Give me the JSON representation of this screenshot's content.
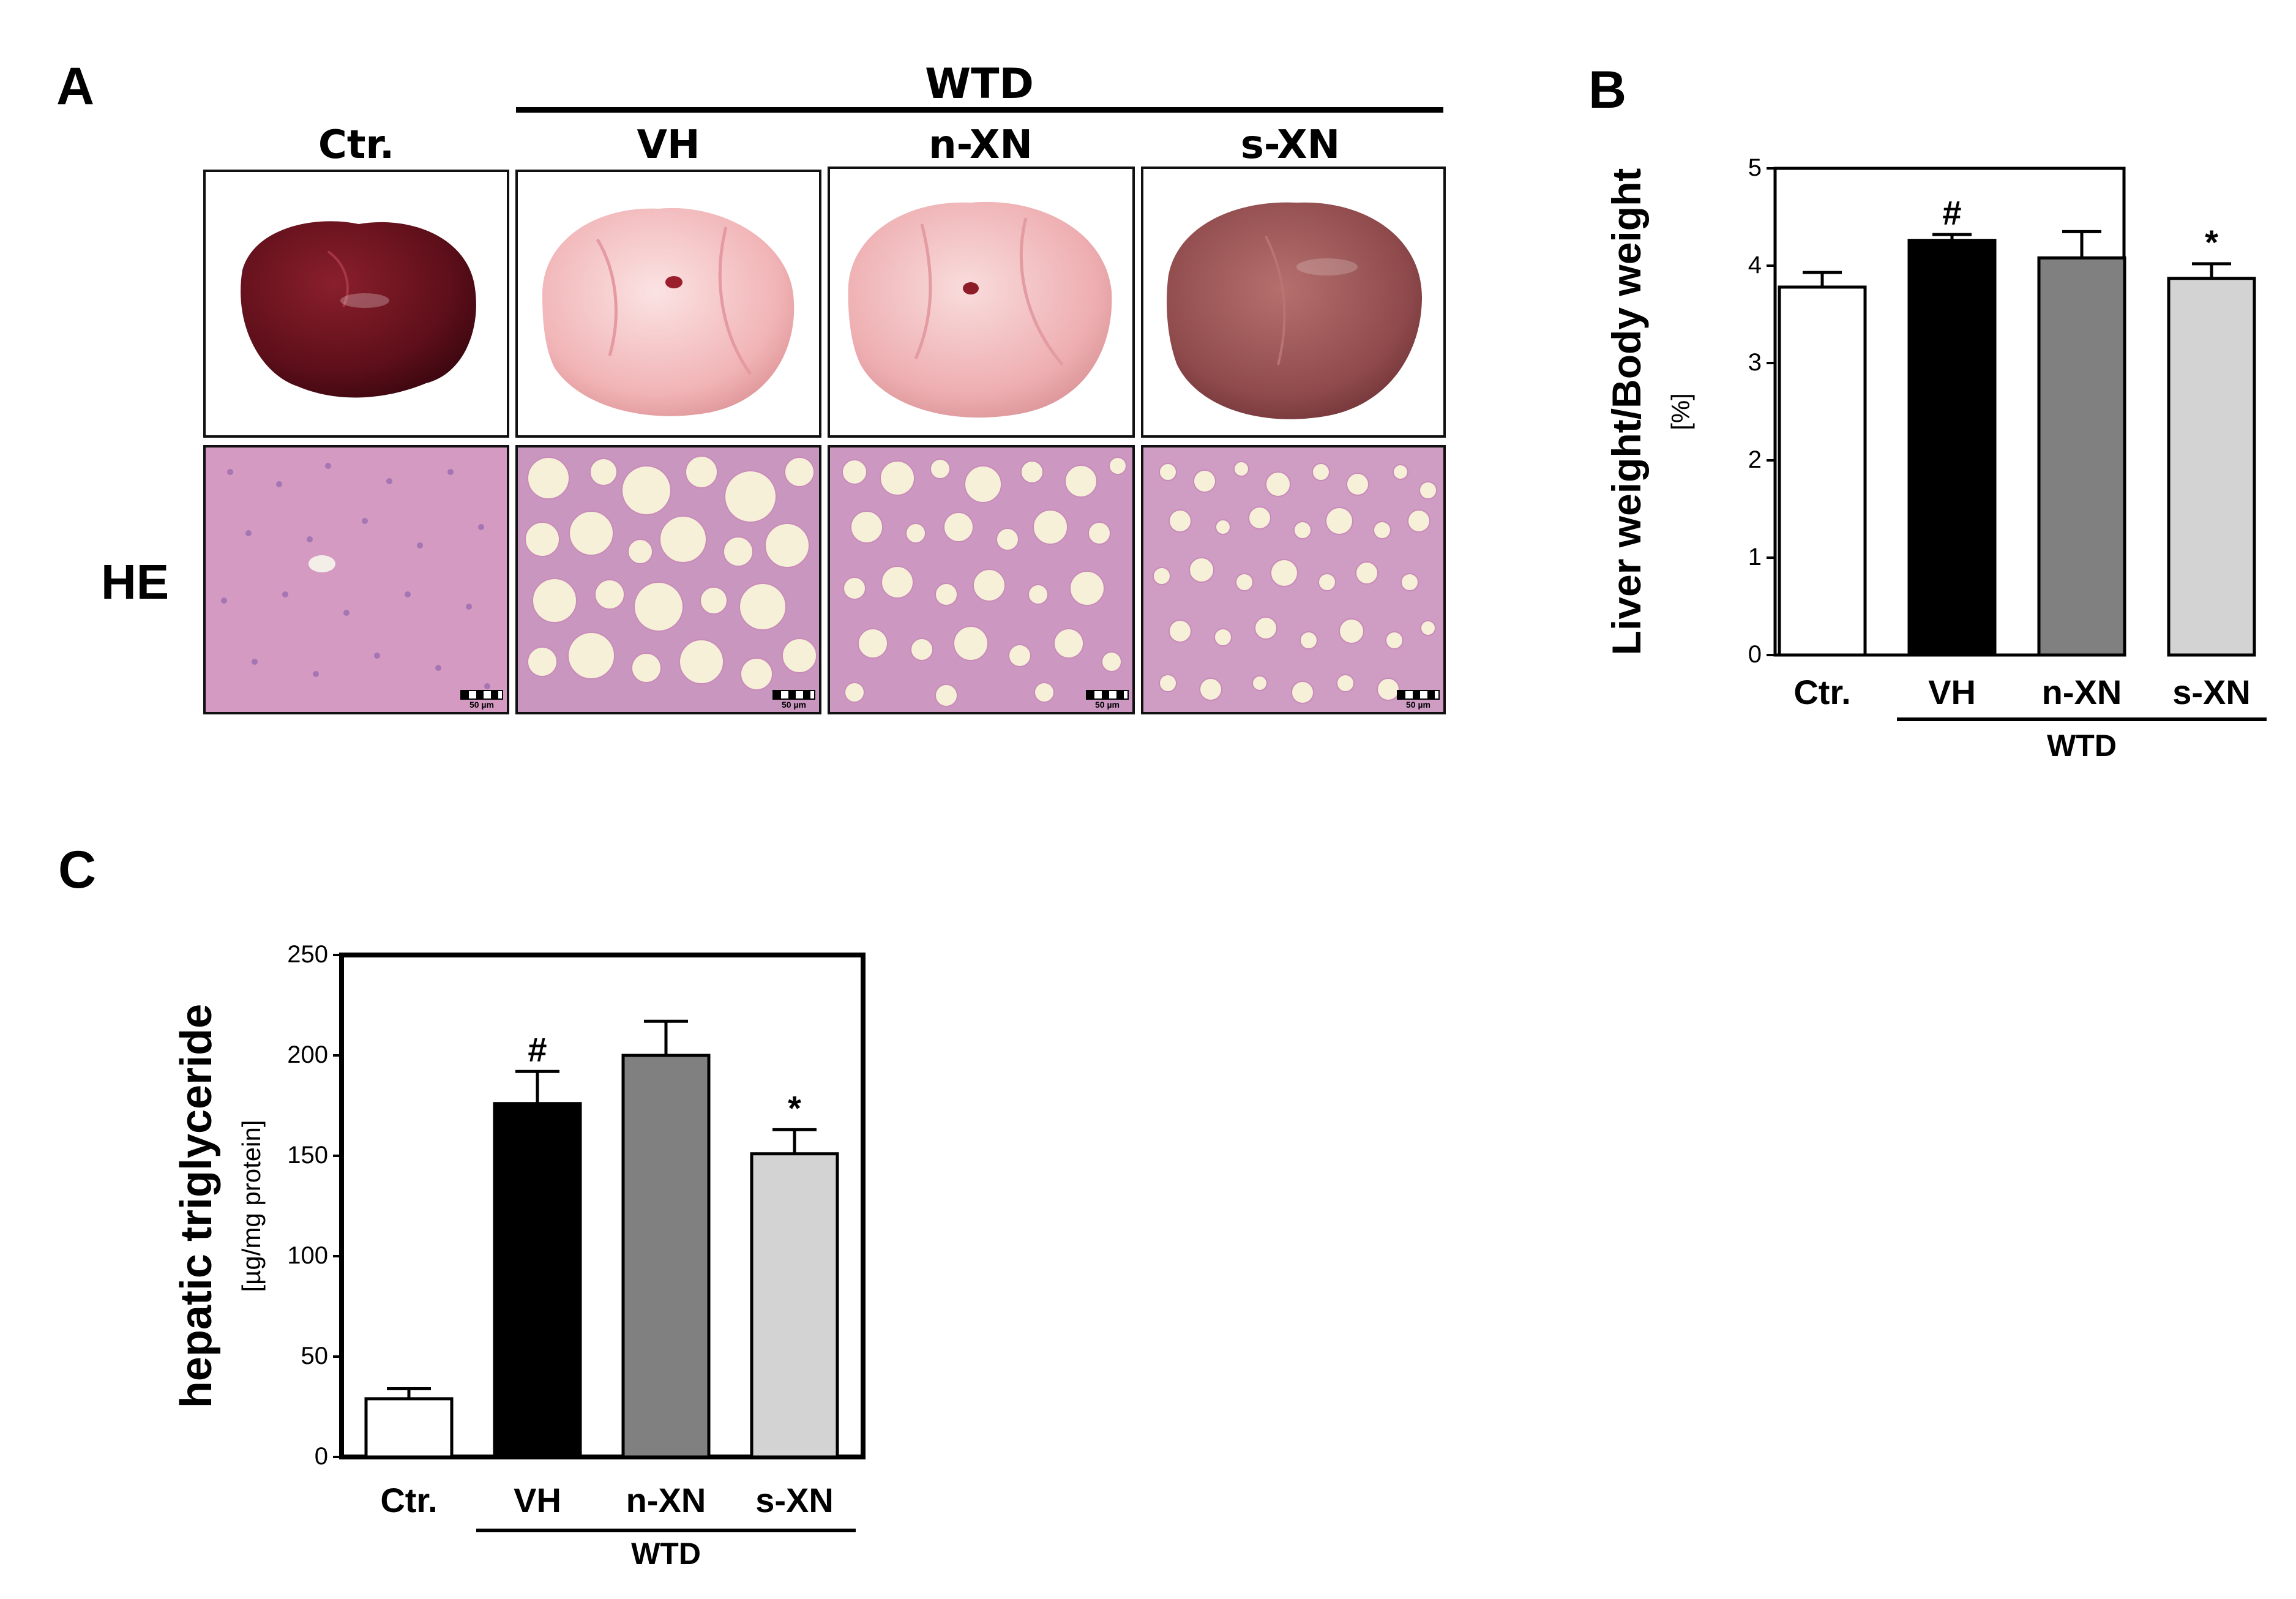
{
  "panel_a": {
    "letter": "A",
    "wtd_label": "WTD",
    "groups": [
      "Ctr.",
      "VH",
      "n-XN",
      "s-XN"
    ],
    "row_label": "HE",
    "scale_label": "50 µm"
  },
  "chart_data": [
    {
      "id": "B",
      "letter": "B",
      "type": "bar",
      "categories": [
        "Ctr.",
        "VH",
        "n-XN",
        "s-XN"
      ],
      "values": [
        3.78,
        4.26,
        4.08,
        3.87
      ],
      "errors": [
        0.15,
        0.06,
        0.27,
        0.15
      ],
      "bar_colors": [
        "#ffffff",
        "#000000",
        "#808080",
        "#d3d3d3"
      ],
      "annotations": [
        "",
        "#",
        "",
        "*"
      ],
      "ylabel": "Liver weight/Body weight",
      "yunit": "[%]",
      "ylim": [
        0,
        5
      ],
      "yticks": [
        "0",
        "1",
        "2",
        "3",
        "4",
        "5"
      ],
      "group_label": "WTD"
    },
    {
      "id": "C",
      "letter": "C",
      "type": "bar",
      "categories": [
        "Ctr.",
        "VH",
        "n-XN",
        "s-XN"
      ],
      "values": [
        29,
        176,
        200,
        151
      ],
      "errors": [
        5,
        16,
        17,
        12
      ],
      "bar_colors": [
        "#ffffff",
        "#000000",
        "#808080",
        "#d3d3d3"
      ],
      "annotations": [
        "",
        "#",
        "",
        "*"
      ],
      "ylabel": "hepatic triglyceride",
      "yunit": "[µg/mg protein]",
      "ylim": [
        0,
        250
      ],
      "yticks": [
        "0",
        "50",
        "100",
        "150",
        "200",
        "250"
      ],
      "group_label": "WTD"
    }
  ]
}
